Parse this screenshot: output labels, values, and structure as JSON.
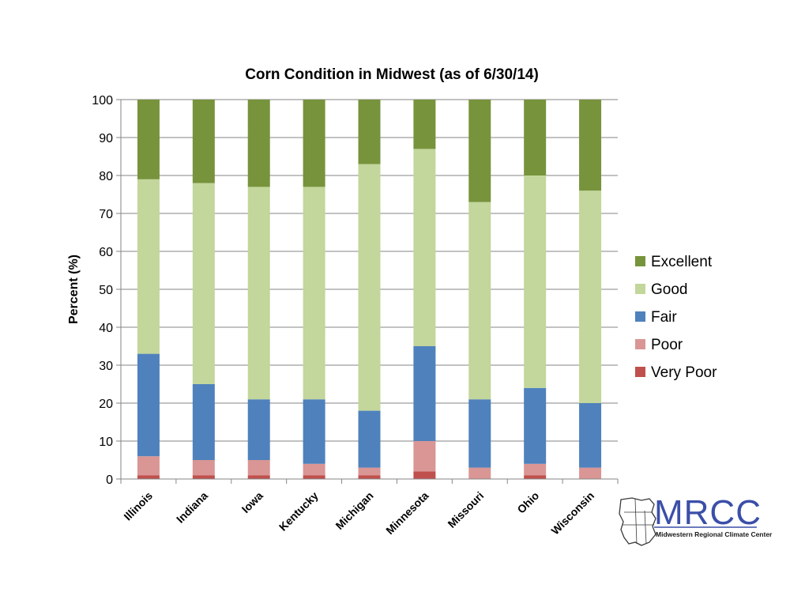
{
  "chart_data": {
    "type": "bar",
    "stacked": true,
    "title": "Corn Condition in Midwest (as of 6/30/14)",
    "xlabel": "",
    "ylabel": "Percent (%)",
    "ylim": [
      0,
      100
    ],
    "yticks": [
      0,
      10,
      20,
      30,
      40,
      50,
      60,
      70,
      80,
      90,
      100
    ],
    "grid": true,
    "legend_position": "right",
    "categories": [
      "Illinois",
      "Indiana",
      "Iowa",
      "Kentucky",
      "Michigan",
      "Minnesota",
      "Missouri",
      "Ohio",
      "Wisconsin"
    ],
    "series": [
      {
        "name": "Very Poor",
        "color": "#c0504d",
        "values": [
          1,
          1,
          1,
          1,
          1,
          2,
          0,
          1,
          0
        ]
      },
      {
        "name": "Poor",
        "color": "#d99694",
        "values": [
          5,
          4,
          4,
          3,
          2,
          8,
          3,
          3,
          3
        ]
      },
      {
        "name": "Fair",
        "color": "#4f81bd",
        "values": [
          27,
          20,
          16,
          17,
          15,
          25,
          18,
          20,
          17
        ]
      },
      {
        "name": "Good",
        "color": "#c3d69b",
        "values": [
          46,
          53,
          56,
          56,
          65,
          52,
          52,
          56,
          56
        ]
      },
      {
        "name": "Excellent",
        "color": "#77933c",
        "values": [
          21,
          22,
          23,
          23,
          17,
          13,
          27,
          20,
          24
        ]
      }
    ]
  },
  "logo": {
    "name": "MRCC",
    "subtitle": "Midwestern Regional Climate Center"
  }
}
